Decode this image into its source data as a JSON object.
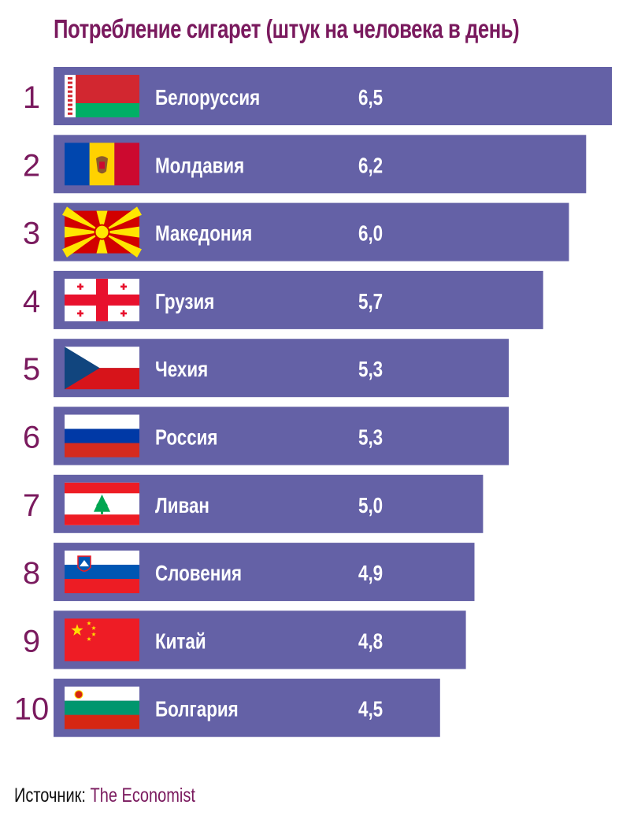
{
  "chart_data": {
    "type": "bar",
    "title": "Потребление сигарет (штук на человека в день)",
    "categories": [
      "Белоруссия",
      "Молдавия",
      "Македония",
      "Грузия",
      "Чехия",
      "Россия",
      "Ливан",
      "Словения",
      "Китай",
      "Болгария"
    ],
    "ranks": [
      "1",
      "2",
      "3",
      "4",
      "5",
      "6",
      "7",
      "8",
      "9",
      "10"
    ],
    "values": [
      6.5,
      6.2,
      6.0,
      5.7,
      5.3,
      5.3,
      5.0,
      4.9,
      4.8,
      4.5
    ],
    "value_labels": [
      "6,5",
      "6,2",
      "6,0",
      "5,7",
      "5,3",
      "5,3",
      "5,0",
      "4,9",
      "4,8",
      "4,5"
    ],
    "flags": [
      "belarus-flag",
      "moldova-flag",
      "macedonia-flag",
      "georgia-flag",
      "czech-flag",
      "russia-flag",
      "lebanon-flag",
      "slovenia-flag",
      "china-flag",
      "bulgaria-flag"
    ],
    "orientation": "horizontal",
    "xlim": [
      0,
      6.5
    ],
    "grid": false,
    "legend": "none",
    "colors": {
      "bar": "#6461a6",
      "title": "#7a1a5e",
      "rank": "#7a1a5e"
    }
  },
  "source": {
    "label": "Источник:",
    "publisher": "The Economist"
  }
}
